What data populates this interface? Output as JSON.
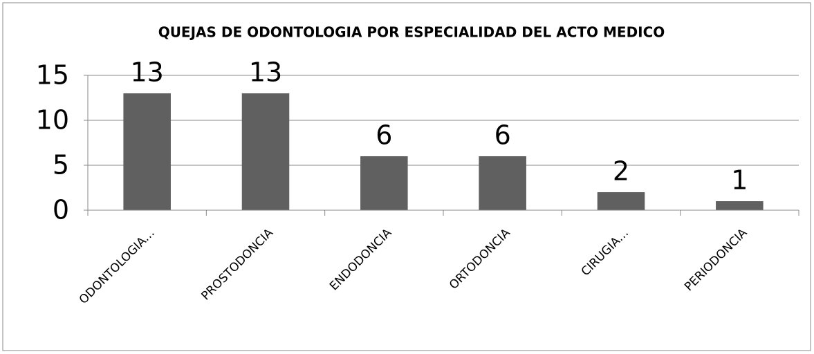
{
  "chart_data": {
    "type": "bar",
    "title": "QUEJAS DE ODONTOLOGIA POR ESPECIALIDAD DEL ACTO MEDICO",
    "categories": [
      "ODONTOLOGIA…",
      "PROSTODONCIA",
      "ENDODONCIA",
      "ORTODONCIA",
      "CIRUGIA…",
      "PERIODONCIA"
    ],
    "values": [
      13,
      13,
      6,
      6,
      2,
      1
    ],
    "color": "#606060",
    "ylim": [
      0,
      15
    ],
    "yticks": [
      0,
      5,
      10,
      15
    ],
    "grid": true
  }
}
